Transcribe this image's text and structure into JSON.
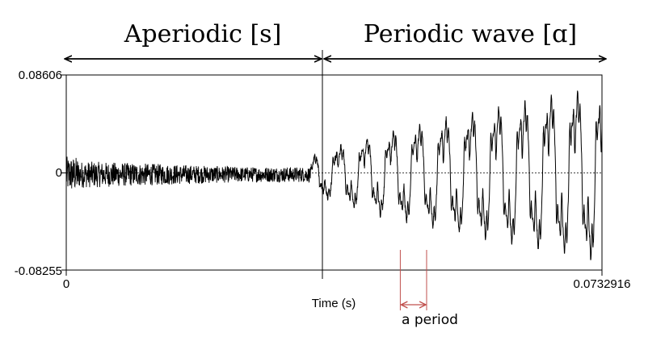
{
  "labels": {
    "aperiodic": "Aperiodic [s]",
    "periodic": "Periodic wave [ɑ]",
    "period": "a period"
  },
  "chart_data": {
    "type": "line",
    "series": [
      {
        "segment": "aperiodic",
        "x_range": [
          0,
          0.0335
        ],
        "noise_amplitude": 0.012,
        "description_visible": "Aperiodic [s]"
      },
      {
        "segment": "periodic",
        "x_range": [
          0.0335,
          0.0732916
        ],
        "amplitude_start": 0.015,
        "amplitude_end": 0.082,
        "description_visible": "Periodic wave [ɑ]"
      }
    ],
    "xlabel": "Time (s)",
    "ylabel": "",
    "x_tick_labels": [
      "0",
      "0.0732916"
    ],
    "y_tick_labels": [
      "0.08606",
      "0",
      "-0.08255"
    ],
    "xlim": [
      0,
      0.0732916
    ],
    "ylim": [
      -0.08255,
      0.08606
    ],
    "zero_line": "dotted",
    "boundary_time": 0.0335,
    "period_marker": {
      "start": 0.0457,
      "end": 0.0493
    },
    "colors": {
      "waveform": "#000000",
      "annotation": "#c0504d"
    }
  }
}
